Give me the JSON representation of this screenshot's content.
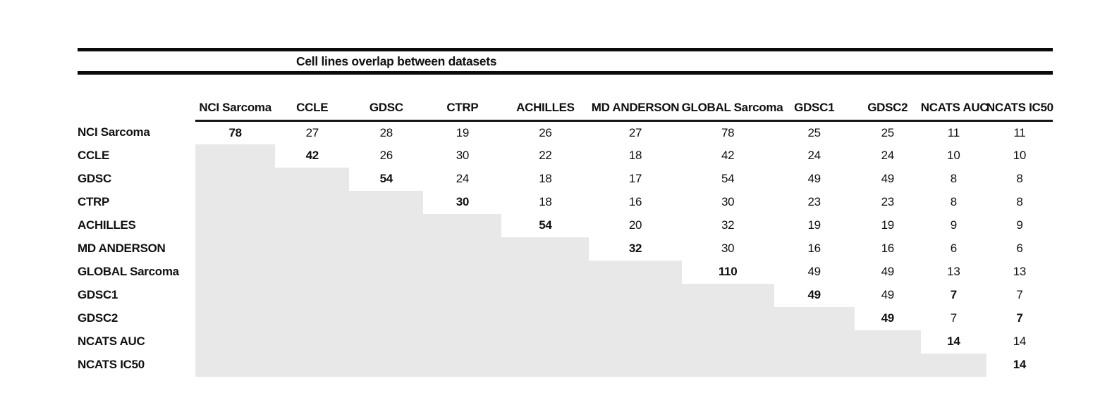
{
  "figure": {
    "title": "Cell lines overlap between datasets"
  },
  "colors": {
    "shaded_cell": "#e8e8e8",
    "rule": "#0b0b0b",
    "text": "#111111"
  },
  "chart_data": {
    "type": "table",
    "title": "Cell lines overlap between datasets",
    "description": "Symmetric overlap matrix; only the upper triangle (including the diagonal) shows values, the lower triangle is shaded gray. Diagonal values are bold.",
    "datasets": [
      "NCI Sarcoma",
      "CCLE",
      "GDSC",
      "CTRP",
      "ACHILLES",
      "MD ANDERSON",
      "GLOBAL Sarcoma",
      "GDSC1",
      "GDSC2",
      "NCATS AUC",
      "NCATS IC50"
    ],
    "columns": [
      "NCI Sarcoma",
      "CCLE",
      "GDSC",
      "CTRP",
      "ACHILLES",
      "MD ANDERSON",
      "GLOBAL Sarcoma",
      "GDSC1",
      "GDSC2",
      "NCATS AUC",
      "NCATS IC50"
    ],
    "rows": [
      "NCI Sarcoma",
      "CCLE",
      "GDSC",
      "CTRP",
      "ACHILLES",
      "MD ANDERSON",
      "GLOBAL Sarcoma",
      "GDSC1",
      "GDSC2",
      "NCATS AUC",
      "NCATS IC50"
    ],
    "matrix": [
      [
        78,
        27,
        28,
        19,
        26,
        27,
        78,
        25,
        25,
        11,
        11
      ],
      [
        null,
        42,
        26,
        30,
        22,
        18,
        42,
        24,
        24,
        10,
        10
      ],
      [
        null,
        null,
        54,
        24,
        18,
        17,
        54,
        49,
        49,
        8,
        8
      ],
      [
        null,
        null,
        null,
        30,
        18,
        16,
        30,
        23,
        23,
        8,
        8
      ],
      [
        null,
        null,
        null,
        null,
        54,
        20,
        32,
        19,
        19,
        9,
        9
      ],
      [
        null,
        null,
        null,
        null,
        null,
        32,
        30,
        16,
        16,
        6,
        6
      ],
      [
        null,
        null,
        null,
        null,
        null,
        null,
        110,
        49,
        49,
        13,
        13
      ],
      [
        null,
        null,
        null,
        null,
        null,
        null,
        null,
        49,
        49,
        7,
        7
      ],
      [
        null,
        null,
        null,
        null,
        null,
        null,
        null,
        null,
        49,
        7,
        7
      ],
      [
        null,
        null,
        null,
        null,
        null,
        null,
        null,
        null,
        null,
        14,
        14
      ],
      [
        null,
        null,
        null,
        null,
        null,
        null,
        null,
        null,
        null,
        null,
        14
      ]
    ],
    "bold_cells": [
      [
        0,
        0
      ],
      [
        1,
        1
      ],
      [
        2,
        2
      ],
      [
        3,
        3
      ],
      [
        4,
        4
      ],
      [
        5,
        5
      ],
      [
        6,
        6
      ],
      [
        7,
        7
      ],
      [
        7,
        9
      ],
      [
        8,
        8
      ],
      [
        8,
        10
      ],
      [
        9,
        9
      ],
      [
        10,
        10
      ]
    ]
  }
}
